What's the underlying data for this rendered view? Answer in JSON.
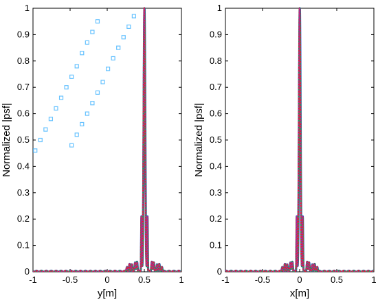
{
  "chart_data": [
    {
      "type": "line",
      "xlabel": "y[m]",
      "ylabel": "Normalized |psf|",
      "xlim": [
        -1,
        1
      ],
      "ylim": [
        0,
        1
      ],
      "xticks": [
        -1,
        -0.5,
        0,
        0.5,
        1
      ],
      "xtick_labels": [
        "-1",
        "-0.5",
        "0",
        "0.5",
        "1"
      ],
      "yticks": [
        0,
        0.1,
        0.2,
        0.3,
        0.4,
        0.5,
        0.6,
        0.7,
        0.8,
        0.9,
        1
      ],
      "ytick_labels": [
        "0",
        "0.1",
        "0.2",
        "0.3",
        "0.4",
        "0.5",
        "0.6",
        "0.7",
        "0.8",
        "0.9",
        "1"
      ],
      "grid": false,
      "peak": {
        "x": 0.5,
        "y": 1.0
      },
      "sidelobe_level": 0.23,
      "sidelobe_offsets": [
        -0.04,
        0.04
      ],
      "series_colors": [
        "#1f3fd6",
        "#2e9e4a",
        "#e0232d",
        "#9b2fb0"
      ],
      "scatter_markers": [
        {
          "color": "#66c2ff",
          "points": [
            [
              -0.97,
              0.46
            ],
            [
              -0.9,
              0.5
            ],
            [
              -0.83,
              0.54
            ],
            [
              -0.76,
              0.58
            ],
            [
              -0.69,
              0.62
            ],
            [
              -0.62,
              0.66
            ],
            [
              -0.55,
              0.7
            ],
            [
              -0.48,
              0.74
            ],
            [
              -0.41,
              0.78
            ],
            [
              -0.34,
              0.83
            ],
            [
              -0.27,
              0.87
            ],
            [
              -0.2,
              0.91
            ],
            [
              -0.13,
              0.95
            ],
            [
              -0.48,
              0.48
            ],
            [
              -0.41,
              0.52
            ],
            [
              -0.34,
              0.56
            ],
            [
              -0.27,
              0.6
            ],
            [
              -0.2,
              0.64
            ],
            [
              -0.13,
              0.68
            ],
            [
              -0.06,
              0.72
            ],
            [
              0.01,
              0.77
            ],
            [
              0.08,
              0.81
            ],
            [
              0.15,
              0.85
            ],
            [
              0.22,
              0.89
            ],
            [
              0.29,
              0.93
            ],
            [
              0.36,
              0.97
            ]
          ]
        }
      ]
    },
    {
      "type": "line",
      "xlabel": "x[m]",
      "ylabel": "Normalized |psf|",
      "xlim": [
        -1,
        1
      ],
      "ylim": [
        0,
        1
      ],
      "xticks": [
        -1,
        -0.5,
        0,
        0.5,
        1
      ],
      "xtick_labels": [
        "-1",
        "-0.5",
        "0",
        "0.5",
        "1"
      ],
      "yticks": [
        0,
        0.1,
        0.2,
        0.3,
        0.4,
        0.5,
        0.6,
        0.7,
        0.8,
        0.9,
        1
      ],
      "ytick_labels": [
        "0",
        "0.1",
        "0.2",
        "0.3",
        "0.4",
        "0.5",
        "0.6",
        "0.7",
        "0.8",
        "0.9",
        "1"
      ],
      "grid": false,
      "peak": {
        "x": 0.0,
        "y": 1.0
      },
      "sidelobe_level": 0.23,
      "sidelobe_offsets": [
        -0.04,
        0.04
      ],
      "series_colors": [
        "#1f3fd6",
        "#2e9e4a",
        "#e0232d",
        "#9b2fb0"
      ],
      "scatter_markers": []
    }
  ]
}
